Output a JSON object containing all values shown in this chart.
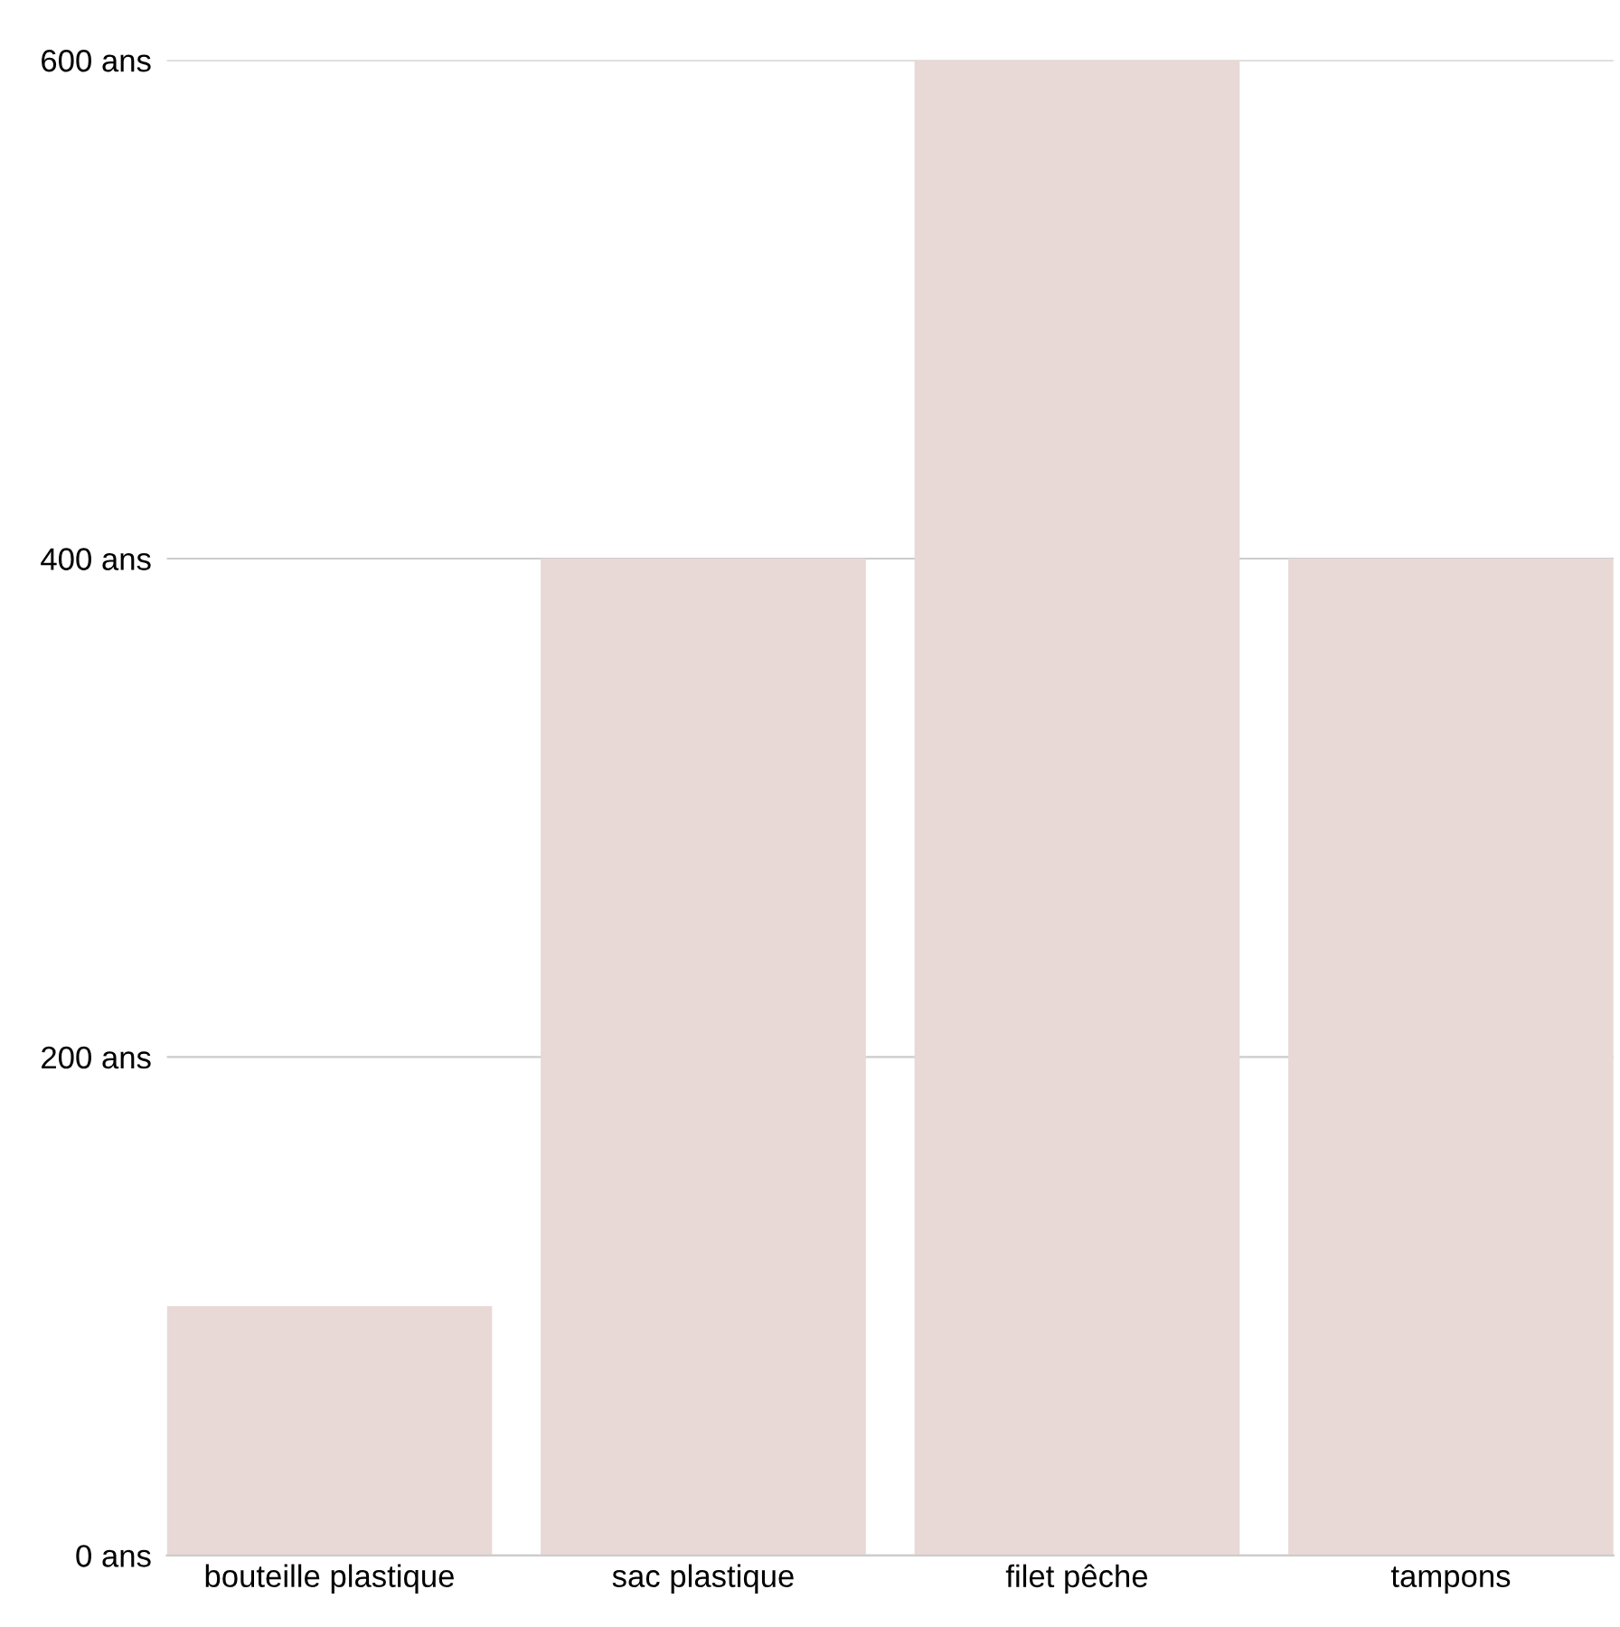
{
  "chart_data": {
    "type": "bar",
    "categories": [
      "bouteille plastique",
      "sac plastique",
      "filet pêche",
      "tampons"
    ],
    "values": [
      100,
      400,
      600,
      400
    ],
    "color": "#e8d9d6",
    "ylim": [
      0,
      600
    ],
    "yticks": [
      {
        "value": 0,
        "label": "0 ans"
      },
      {
        "value": 200,
        "label": "200 ans"
      },
      {
        "value": 400,
        "label": "400 ans"
      },
      {
        "value": 600,
        "label": "600 ans"
      }
    ],
    "grid": "y"
  }
}
